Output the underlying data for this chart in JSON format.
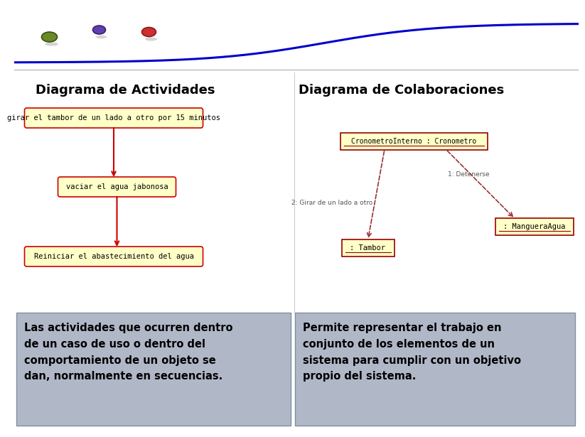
{
  "title_left": "Diagrama de Actividades",
  "title_right": "Diagrama de Colaboraciones",
  "act_box1": "girar el tambor de un lado a otro por 15 minutos",
  "act_box2": "vaciar el agua jabonosa",
  "act_box3": "Reiniciar el abastecimiento del agua",
  "act_box_color": "#ffffc8",
  "act_box_edge": "#cc0000",
  "arrow_color": "#cc0000",
  "collab_top_box": "CronometroInterno : Cronometro",
  "collab_box2": ": Tambor",
  "collab_box3": ": MangueraAgua",
  "collab_box_color": "#ffffc8",
  "collab_box_edge": "#990000",
  "collab_arrow_color": "#993333",
  "label_girar": "2: Girar de un lado a otro",
  "label_detener": "1: Detenerse",
  "text_left": "Las actividades que ocurren dentro\nde un caso de uso o dentro del\ncomportamiento de un objeto se\ndan, normalmente en secuencias.",
  "text_right": "Permite representar el trabajo en\nconjunto de los elementos de un\nsistema para cumplir con un objetivo\npropio del sistema.",
  "text_bg": "#b0b8c8",
  "curve_color": "#0000cc",
  "ball_configs": [
    [
      50,
      42,
      22,
      14,
      "#3a5010",
      "#6a8a28"
    ],
    [
      120,
      32,
      18,
      12,
      "#3a2070",
      "#6040b0"
    ],
    [
      190,
      35,
      20,
      13,
      "#901818",
      "#cc3030"
    ]
  ]
}
